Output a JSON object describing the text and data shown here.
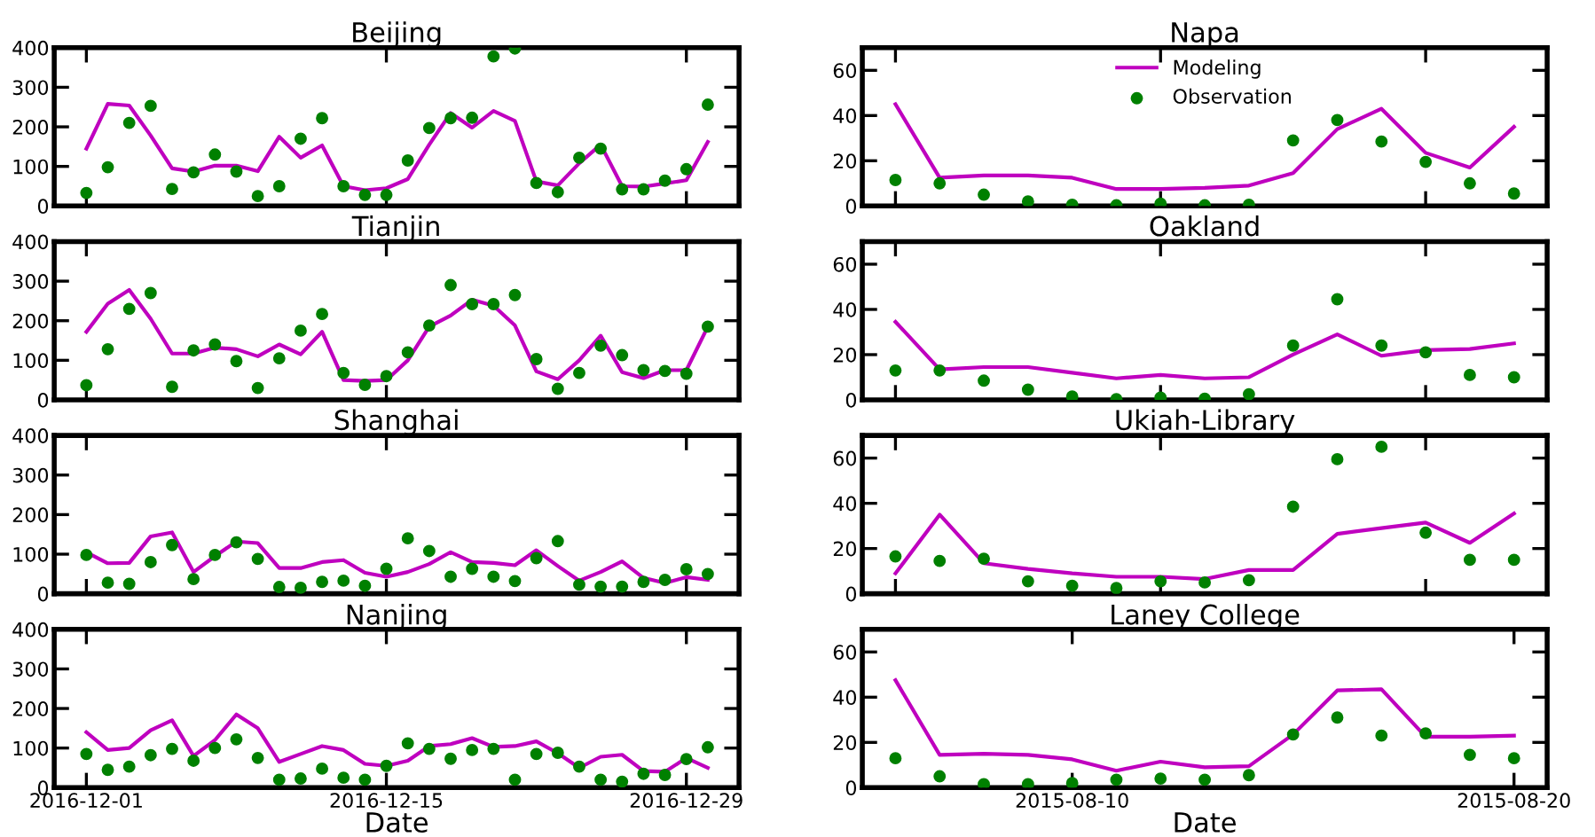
{
  "chart_data": [
    {
      "type": "line",
      "title": "Beijing",
      "x": [
        "2016-12-01",
        "2016-12-02",
        "2016-12-03",
        "2016-12-04",
        "2016-12-05",
        "2016-12-06",
        "2016-12-07",
        "2016-12-08",
        "2016-12-09",
        "2016-12-10",
        "2016-12-11",
        "2016-12-12",
        "2016-12-13",
        "2016-12-14",
        "2016-12-15",
        "2016-12-16",
        "2016-12-17",
        "2016-12-18",
        "2016-12-19",
        "2016-12-20",
        "2016-12-21",
        "2016-12-22",
        "2016-12-23",
        "2016-12-24",
        "2016-12-25",
        "2016-12-26",
        "2016-12-27",
        "2016-12-28",
        "2016-12-29",
        "2016-12-30"
      ],
      "xlim": [
        "2016-11-29T12:00",
        "2016-12-31T11:00"
      ],
      "xticks": [
        {
          "value": "2016-12-01",
          "label": null
        },
        {
          "value": "2016-12-15",
          "label": null
        },
        {
          "value": "2016-12-29",
          "label": null
        }
      ],
      "ylim": [
        0,
        400
      ],
      "yticks": [
        0,
        100,
        200,
        300,
        400
      ],
      "tick_labels": "y",
      "legend": false,
      "grid": false,
      "series": [
        {
          "type": "line",
          "color": "#bf00bf",
          "marker": "none",
          "values": [
            145,
            258,
            254,
            178,
            95,
            87,
            102,
            102,
            88,
            175,
            122,
            153,
            50,
            40,
            45,
            68,
            155,
            235,
            198,
            240,
            215,
            62,
            52,
            108,
            155,
            50,
            49,
            57,
            65,
            162
          ]
        },
        {
          "type": "scatter",
          "color": "#008000",
          "marker": "circle",
          "values": [
            33,
            98,
            210,
            253,
            43,
            85,
            130,
            87,
            25,
            50,
            170,
            222,
            50,
            28,
            28,
            115,
            197,
            222,
            223,
            378,
            398,
            58,
            35,
            122,
            145,
            42,
            42,
            64,
            93,
            256
          ]
        }
      ]
    },
    {
      "type": "line",
      "title": "Tianjin",
      "x": [
        "2016-12-01",
        "2016-12-02",
        "2016-12-03",
        "2016-12-04",
        "2016-12-05",
        "2016-12-06",
        "2016-12-07",
        "2016-12-08",
        "2016-12-09",
        "2016-12-10",
        "2016-12-11",
        "2016-12-12",
        "2016-12-13",
        "2016-12-14",
        "2016-12-15",
        "2016-12-16",
        "2016-12-17",
        "2016-12-18",
        "2016-12-19",
        "2016-12-20",
        "2016-12-21",
        "2016-12-22",
        "2016-12-23",
        "2016-12-24",
        "2016-12-25",
        "2016-12-26",
        "2016-12-27",
        "2016-12-28",
        "2016-12-29",
        "2016-12-30"
      ],
      "xlim": [
        "2016-11-29T12:00",
        "2016-12-31T11:00"
      ],
      "xticks": [
        {
          "value": "2016-12-01",
          "label": null
        },
        {
          "value": "2016-12-15",
          "label": null
        },
        {
          "value": "2016-12-29",
          "label": null
        }
      ],
      "ylim": [
        0,
        400
      ],
      "yticks": [
        0,
        100,
        200,
        300,
        400
      ],
      "tick_labels": "y",
      "legend": false,
      "grid": false,
      "series": [
        {
          "type": "line",
          "color": "#bf00bf",
          "marker": "none",
          "values": [
            172,
            243,
            278,
            205,
            117,
            117,
            132,
            128,
            110,
            140,
            115,
            172,
            50,
            48,
            50,
            100,
            185,
            213,
            253,
            238,
            188,
            72,
            52,
            100,
            162,
            70,
            55,
            75,
            75,
            185
          ]
        },
        {
          "type": "scatter",
          "color": "#008000",
          "marker": "circle",
          "values": [
            37,
            128,
            230,
            270,
            33,
            125,
            140,
            98,
            30,
            105,
            175,
            217,
            68,
            38,
            60,
            120,
            188,
            290,
            242,
            242,
            265,
            103,
            28,
            68,
            137,
            113,
            75,
            73,
            66,
            185
          ]
        }
      ]
    },
    {
      "type": "line",
      "title": "Shanghai",
      "x": [
        "2016-12-01",
        "2016-12-02",
        "2016-12-03",
        "2016-12-04",
        "2016-12-05",
        "2016-12-06",
        "2016-12-07",
        "2016-12-08",
        "2016-12-09",
        "2016-12-10",
        "2016-12-11",
        "2016-12-12",
        "2016-12-13",
        "2016-12-14",
        "2016-12-15",
        "2016-12-16",
        "2016-12-17",
        "2016-12-18",
        "2016-12-19",
        "2016-12-20",
        "2016-12-21",
        "2016-12-22",
        "2016-12-23",
        "2016-12-24",
        "2016-12-25",
        "2016-12-26",
        "2016-12-27",
        "2016-12-28",
        "2016-12-29",
        "2016-12-30"
      ],
      "xlim": [
        "2016-11-29T12:00",
        "2016-12-31T11:00"
      ],
      "xticks": [
        {
          "value": "2016-12-01",
          "label": null
        },
        {
          "value": "2016-12-15",
          "label": null
        },
        {
          "value": "2016-12-29",
          "label": null
        }
      ],
      "ylim": [
        0,
        400
      ],
      "yticks": [
        0,
        100,
        200,
        300,
        400
      ],
      "tick_labels": "y",
      "legend": false,
      "grid": false,
      "series": [
        {
          "type": "line",
          "color": "#bf00bf",
          "marker": "none",
          "values": [
            105,
            77,
            78,
            145,
            155,
            55,
            95,
            132,
            128,
            65,
            65,
            80,
            85,
            53,
            43,
            55,
            75,
            105,
            80,
            78,
            72,
            110,
            70,
            33,
            55,
            82,
            40,
            27,
            42,
            35
          ]
        },
        {
          "type": "scatter",
          "color": "#008000",
          "marker": "circle",
          "values": [
            98,
            28,
            25,
            80,
            123,
            37,
            98,
            130,
            88,
            17,
            15,
            30,
            33,
            20,
            63,
            140,
            108,
            43,
            63,
            43,
            32,
            90,
            133,
            23,
            18,
            18,
            30,
            35,
            62,
            50
          ]
        }
      ]
    },
    {
      "type": "line",
      "title": "Nanjing",
      "xlabel": "Date",
      "x": [
        "2016-12-01",
        "2016-12-02",
        "2016-12-03",
        "2016-12-04",
        "2016-12-05",
        "2016-12-06",
        "2016-12-07",
        "2016-12-08",
        "2016-12-09",
        "2016-12-10",
        "2016-12-11",
        "2016-12-12",
        "2016-12-13",
        "2016-12-14",
        "2016-12-15",
        "2016-12-16",
        "2016-12-17",
        "2016-12-18",
        "2016-12-19",
        "2016-12-20",
        "2016-12-21",
        "2016-12-22",
        "2016-12-23",
        "2016-12-24",
        "2016-12-25",
        "2016-12-26",
        "2016-12-27",
        "2016-12-28",
        "2016-12-29",
        "2016-12-30"
      ],
      "xlim": [
        "2016-11-29T12:00",
        "2016-12-31T11:00"
      ],
      "xticks": [
        {
          "value": "2016-12-01",
          "label": "2016-12-01"
        },
        {
          "value": "2016-12-15",
          "label": "2016-12-15"
        },
        {
          "value": "2016-12-29",
          "label": "2016-12-29"
        }
      ],
      "ylim": [
        0,
        400
      ],
      "yticks": [
        0,
        100,
        200,
        300,
        400
      ],
      "legend": false,
      "grid": false,
      "series": [
        {
          "type": "line",
          "color": "#bf00bf",
          "marker": "none",
          "values": [
            140,
            95,
            100,
            145,
            170,
            80,
            120,
            185,
            150,
            65,
            85,
            105,
            95,
            60,
            55,
            68,
            105,
            110,
            125,
            103,
            105,
            117,
            87,
            50,
            78,
            83,
            42,
            40,
            75,
            50
          ]
        },
        {
          "type": "scatter",
          "color": "#008000",
          "marker": "circle",
          "values": [
            85,
            45,
            53,
            82,
            98,
            68,
            100,
            122,
            75,
            20,
            23,
            48,
            25,
            20,
            55,
            112,
            98,
            73,
            95,
            98,
            20,
            85,
            88,
            53,
            20,
            15,
            35,
            32,
            72,
            102
          ]
        }
      ]
    },
    {
      "type": "line",
      "title": "Napa",
      "x": [
        "2015-08-06",
        "2015-08-07",
        "2015-08-08",
        "2015-08-09",
        "2015-08-10",
        "2015-08-11",
        "2015-08-12",
        "2015-08-13",
        "2015-08-14",
        "2015-08-15",
        "2015-08-16",
        "2015-08-17",
        "2015-08-18",
        "2015-08-19",
        "2015-08-20"
      ],
      "xlim": [
        "2015-08-05T06:00",
        "2015-08-20T18:00"
      ],
      "xticks": [
        {
          "value": "2015-08-06",
          "label": null
        },
        {
          "value": "2015-08-12",
          "label": null
        },
        {
          "value": "2015-08-18",
          "label": null
        }
      ],
      "ylim": [
        0,
        70
      ],
      "yticks": [
        0,
        20,
        40,
        60
      ],
      "tick_labels": "y",
      "legend": "top center",
      "grid": false,
      "series": [
        {
          "type": "line",
          "name": "Modeling",
          "color": "#bf00bf",
          "marker": "none",
          "values": [
            45,
            12.5,
            13.5,
            13.5,
            12.5,
            7.5,
            7.5,
            8,
            9,
            14.5,
            34,
            43,
            23.5,
            17,
            35
          ]
        },
        {
          "type": "scatter",
          "name": "Observation",
          "color": "#008000",
          "marker": "circle",
          "values": [
            11.5,
            10,
            5,
            2,
            0.5,
            0.3,
            1,
            0.3,
            0.5,
            29,
            38,
            28.5,
            19.5,
            10,
            5.5
          ]
        }
      ]
    },
    {
      "type": "line",
      "title": "Oakland",
      "x": [
        "2015-08-06",
        "2015-08-07",
        "2015-08-08",
        "2015-08-09",
        "2015-08-10",
        "2015-08-11",
        "2015-08-12",
        "2015-08-13",
        "2015-08-14",
        "2015-08-15",
        "2015-08-16",
        "2015-08-17",
        "2015-08-18",
        "2015-08-19",
        "2015-08-20"
      ],
      "xlim": [
        "2015-08-05T06:00",
        "2015-08-20T18:00"
      ],
      "xticks": [
        {
          "value": "2015-08-06",
          "label": null
        },
        {
          "value": "2015-08-12",
          "label": null
        },
        {
          "value": "2015-08-18",
          "label": null
        }
      ],
      "ylim": [
        0,
        70
      ],
      "yticks": [
        0,
        20,
        40,
        60
      ],
      "tick_labels": "y",
      "legend": false,
      "grid": false,
      "series": [
        {
          "type": "line",
          "color": "#bf00bf",
          "marker": "none",
          "values": [
            34.5,
            13.5,
            14.5,
            14.5,
            12,
            9.5,
            11,
            9.5,
            10,
            20,
            29,
            19.5,
            22,
            22.5,
            25
          ]
        },
        {
          "type": "scatter",
          "color": "#008000",
          "marker": "circle",
          "values": [
            13,
            13,
            8.5,
            4.5,
            1.5,
            0.3,
            1,
            0.5,
            2.5,
            24,
            44.5,
            24,
            21,
            11,
            10
          ]
        }
      ]
    },
    {
      "type": "line",
      "title": "Ukiah-Library",
      "x": [
        "2015-08-06",
        "2015-08-07",
        "2015-08-08",
        "2015-08-09",
        "2015-08-10",
        "2015-08-11",
        "2015-08-12",
        "2015-08-13",
        "2015-08-14",
        "2015-08-15",
        "2015-08-16",
        "2015-08-17",
        "2015-08-18",
        "2015-08-19",
        "2015-08-20"
      ],
      "xlim": [
        "2015-08-05T06:00",
        "2015-08-20T18:00"
      ],
      "xticks": [
        {
          "value": "2015-08-06",
          "label": null
        },
        {
          "value": "2015-08-12",
          "label": null
        },
        {
          "value": "2015-08-18",
          "label": null
        }
      ],
      "ylim": [
        0,
        70
      ],
      "yticks": [
        0,
        20,
        40,
        60
      ],
      "tick_labels": "y",
      "legend": false,
      "grid": false,
      "series": [
        {
          "type": "line",
          "color": "#bf00bf",
          "marker": "none",
          "values": [
            9,
            35,
            13.5,
            11,
            9,
            7.5,
            7.5,
            6.5,
            10.5,
            10.5,
            26.5,
            29,
            31.5,
            22.5,
            35.5
          ]
        },
        {
          "type": "scatter",
          "color": "#008000",
          "marker": "circle",
          "values": [
            16.5,
            14.5,
            15.5,
            5.5,
            3.5,
            2.5,
            5.5,
            5,
            6,
            38.5,
            59.5,
            65,
            27,
            15,
            15
          ]
        }
      ]
    },
    {
      "type": "line",
      "title": "Laney College",
      "xlabel": "Date",
      "x": [
        "2015-08-06",
        "2015-08-07",
        "2015-08-08",
        "2015-08-09",
        "2015-08-10",
        "2015-08-11",
        "2015-08-12",
        "2015-08-13",
        "2015-08-14",
        "2015-08-15",
        "2015-08-16",
        "2015-08-17",
        "2015-08-18",
        "2015-08-19",
        "2015-08-20"
      ],
      "xlim": [
        "2015-08-05T06:00",
        "2015-08-20T18:00"
      ],
      "xticks": [
        {
          "value": "2015-08-10",
          "label": "2015-08-10"
        },
        {
          "value": "2015-08-20",
          "label": "2015-08-20"
        }
      ],
      "ylim": [
        0,
        70
      ],
      "yticks": [
        0,
        20,
        40,
        60
      ],
      "legend": false,
      "grid": false,
      "series": [
        {
          "type": "line",
          "color": "#bf00bf",
          "marker": "none",
          "values": [
            47.5,
            14.5,
            15,
            14.5,
            12.5,
            7.5,
            11.5,
            9,
            9.5,
            23.5,
            43,
            43.5,
            22.5,
            22.5,
            23
          ]
        },
        {
          "type": "scatter",
          "color": "#008000",
          "marker": "circle",
          "values": [
            13,
            5,
            1.5,
            1.5,
            2,
            3.5,
            4,
            3.5,
            5.5,
            23.5,
            31,
            23,
            24,
            14.5,
            13
          ]
        }
      ]
    }
  ]
}
